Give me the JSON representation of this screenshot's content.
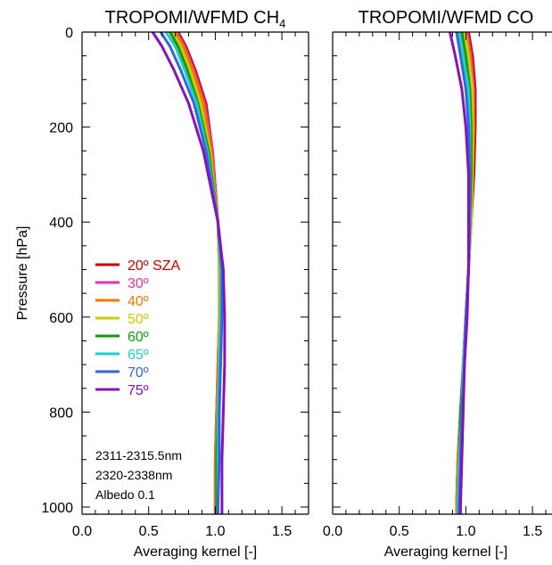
{
  "chart_data": [
    {
      "type": "line",
      "title": "TROPOMI/WFMD CH",
      "title_subscript": "4",
      "xlabel": "Averaging kernel [-]",
      "ylabel": "Pressure [hPa]",
      "xlim": [
        0.0,
        1.7
      ],
      "ylim": [
        1015,
        0
      ],
      "y_reversed": true,
      "xticks": [
        "0.0",
        "0.5",
        "1.0",
        "1.5"
      ],
      "yticks": [
        "0",
        "200",
        "400",
        "600",
        "800",
        "1000"
      ],
      "legend": {
        "placement": "lower-left"
      },
      "notes": [
        "2311-2315.5nm",
        "2320-2338nm",
        "Albedo 0.1"
      ],
      "series": [
        {
          "name": "20º SZA",
          "color": "#cc0000",
          "x": [
            0.72,
            0.78,
            0.85,
            0.93,
            0.98,
            1.02,
            1.03,
            1.03,
            1.02,
            1.01,
            1.0,
            1.0,
            1.0
          ],
          "y": [
            0,
            30,
            80,
            150,
            250,
            400,
            500,
            600,
            700,
            800,
            900,
            1000,
            1015
          ]
        },
        {
          "name": "30º",
          "color": "#ee3399",
          "x": [
            0.71,
            0.77,
            0.84,
            0.92,
            0.98,
            1.02,
            1.03,
            1.03,
            1.02,
            1.01,
            1.0,
            1.0,
            1.0
          ],
          "y": [
            0,
            30,
            80,
            150,
            250,
            400,
            500,
            600,
            700,
            800,
            900,
            1000,
            1015
          ]
        },
        {
          "name": "40º",
          "color": "#ee7700",
          "x": [
            0.7,
            0.76,
            0.83,
            0.91,
            0.97,
            1.02,
            1.03,
            1.03,
            1.02,
            1.01,
            1.0,
            1.0,
            1.0
          ],
          "y": [
            0,
            30,
            80,
            150,
            250,
            400,
            500,
            600,
            700,
            800,
            900,
            1000,
            1015
          ]
        },
        {
          "name": "50º",
          "color": "#cccc00",
          "x": [
            0.68,
            0.74,
            0.81,
            0.89,
            0.96,
            1.02,
            1.03,
            1.03,
            1.03,
            1.02,
            1.01,
            1.01,
            1.01
          ],
          "y": [
            0,
            30,
            80,
            150,
            250,
            400,
            500,
            600,
            700,
            800,
            900,
            1000,
            1015
          ]
        },
        {
          "name": "60º",
          "color": "#119911",
          "x": [
            0.66,
            0.72,
            0.79,
            0.87,
            0.95,
            1.02,
            1.04,
            1.04,
            1.03,
            1.02,
            1.01,
            1.01,
            1.01
          ],
          "y": [
            0,
            30,
            80,
            150,
            250,
            400,
            500,
            600,
            700,
            800,
            900,
            1000,
            1015
          ]
        },
        {
          "name": "65º",
          "color": "#22cccc",
          "x": [
            0.63,
            0.7,
            0.77,
            0.86,
            0.94,
            1.02,
            1.04,
            1.04,
            1.03,
            1.02,
            1.02,
            1.02,
            1.02
          ],
          "y": [
            0,
            30,
            80,
            150,
            250,
            400,
            500,
            600,
            700,
            800,
            900,
            1000,
            1015
          ]
        },
        {
          "name": "70º",
          "color": "#3366dd",
          "x": [
            0.59,
            0.66,
            0.74,
            0.84,
            0.93,
            1.02,
            1.05,
            1.05,
            1.04,
            1.03,
            1.03,
            1.02,
            1.02
          ],
          "y": [
            0,
            30,
            80,
            150,
            250,
            400,
            500,
            600,
            700,
            800,
            900,
            1000,
            1015
          ]
        },
        {
          "name": "75º",
          "color": "#8811bb",
          "x": [
            0.53,
            0.6,
            0.69,
            0.8,
            0.91,
            1.02,
            1.06,
            1.07,
            1.07,
            1.06,
            1.05,
            1.05,
            1.05
          ],
          "y": [
            0,
            30,
            80,
            150,
            250,
            400,
            500,
            600,
            700,
            800,
            900,
            1000,
            1015
          ]
        }
      ]
    },
    {
      "type": "line",
      "title": "TROPOMI/WFMD CO",
      "xlabel": "Averaging kernel [-]",
      "xlim": [
        0.0,
        1.7
      ],
      "ylim": [
        1015,
        0
      ],
      "y_reversed": true,
      "xticks": [
        "0.0",
        "0.5",
        "1.0",
        "1.5"
      ],
      "series": [
        {
          "name": "20º SZA",
          "color": "#cc0000",
          "x": [
            1.02,
            1.05,
            1.07,
            1.07,
            1.06,
            1.04,
            1.02,
            1.0,
            0.98,
            0.96,
            0.94,
            0.93,
            0.93
          ],
          "y": [
            0,
            50,
            120,
            200,
            300,
            400,
            500,
            600,
            700,
            800,
            900,
            1000,
            1015
          ]
        },
        {
          "name": "30º",
          "color": "#ee3399",
          "x": [
            1.01,
            1.04,
            1.06,
            1.06,
            1.05,
            1.04,
            1.02,
            1.0,
            0.98,
            0.96,
            0.94,
            0.93,
            0.93
          ],
          "y": [
            0,
            50,
            120,
            200,
            300,
            400,
            500,
            600,
            700,
            800,
            900,
            1000,
            1015
          ]
        },
        {
          "name": "40º",
          "color": "#ee7700",
          "x": [
            1.0,
            1.03,
            1.05,
            1.06,
            1.05,
            1.04,
            1.02,
            1.0,
            0.98,
            0.96,
            0.94,
            0.93,
            0.93
          ],
          "y": [
            0,
            50,
            120,
            200,
            300,
            400,
            500,
            600,
            700,
            800,
            900,
            1000,
            1015
          ]
        },
        {
          "name": "50º",
          "color": "#cccc00",
          "x": [
            0.99,
            1.02,
            1.05,
            1.05,
            1.05,
            1.04,
            1.02,
            1.0,
            0.98,
            0.96,
            0.95,
            0.94,
            0.94
          ],
          "y": [
            0,
            50,
            120,
            200,
            300,
            400,
            500,
            600,
            700,
            800,
            900,
            1000,
            1015
          ]
        },
        {
          "name": "60º",
          "color": "#119911",
          "x": [
            0.97,
            1.0,
            1.03,
            1.04,
            1.04,
            1.03,
            1.02,
            1.0,
            0.98,
            0.96,
            0.95,
            0.94,
            0.94
          ],
          "y": [
            0,
            50,
            120,
            200,
            300,
            400,
            500,
            600,
            700,
            800,
            900,
            1000,
            1015
          ]
        },
        {
          "name": "65º",
          "color": "#22cccc",
          "x": [
            0.95,
            0.98,
            1.02,
            1.03,
            1.03,
            1.03,
            1.02,
            1.0,
            0.98,
            0.97,
            0.95,
            0.94,
            0.94
          ],
          "y": [
            0,
            50,
            120,
            200,
            300,
            400,
            500,
            600,
            700,
            800,
            900,
            1000,
            1015
          ]
        },
        {
          "name": "70º",
          "color": "#3366dd",
          "x": [
            0.93,
            0.96,
            1.0,
            1.02,
            1.03,
            1.03,
            1.02,
            1.0,
            0.99,
            0.97,
            0.96,
            0.95,
            0.95
          ],
          "y": [
            0,
            50,
            120,
            200,
            300,
            400,
            500,
            600,
            700,
            800,
            900,
            1000,
            1015
          ]
        },
        {
          "name": "75º",
          "color": "#8811bb",
          "x": [
            0.88,
            0.92,
            0.97,
            1.0,
            1.02,
            1.02,
            1.02,
            1.01,
            0.99,
            0.98,
            0.97,
            0.96,
            0.96
          ],
          "y": [
            0,
            50,
            120,
            200,
            300,
            400,
            500,
            600,
            700,
            800,
            900,
            1000,
            1015
          ]
        }
      ]
    }
  ]
}
